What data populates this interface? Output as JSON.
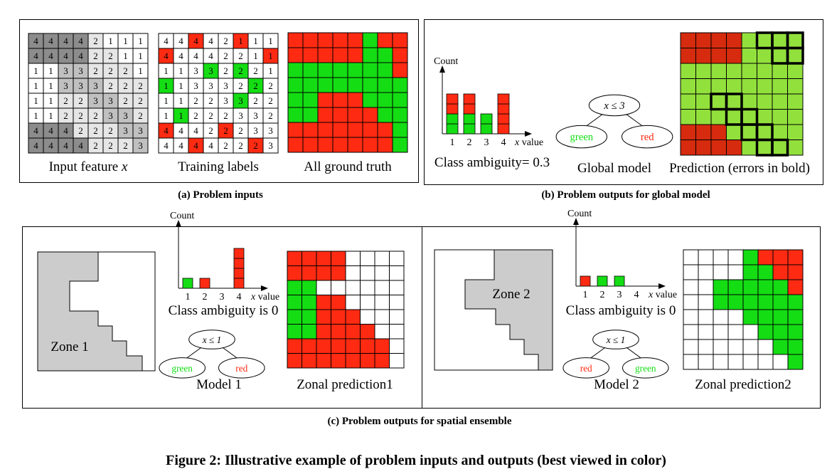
{
  "colors": {
    "red": "#ff2a12",
    "green": "#14dd14",
    "light_green": "#92e03c",
    "dark_red": "#d62b0e",
    "zone_gray": "#cccccc",
    "feature_dark": "#8c8c8c",
    "feature_mid": "#c0c0c0",
    "feature_light": "#e6e6e6"
  },
  "panel_a": {
    "caption": "(a) Problem inputs",
    "input_feature": {
      "label_text": "Input feature ",
      "label_var": "x",
      "grid": [
        [
          4,
          4,
          4,
          4,
          2,
          1,
          1,
          1
        ],
        [
          4,
          4,
          4,
          4,
          2,
          2,
          1,
          1
        ],
        [
          1,
          1,
          3,
          3,
          2,
          2,
          2,
          1
        ],
        [
          1,
          1,
          3,
          3,
          3,
          2,
          2,
          2
        ],
        [
          1,
          1,
          2,
          2,
          3,
          3,
          2,
          2
        ],
        [
          1,
          1,
          2,
          2,
          2,
          3,
          3,
          2
        ],
        [
          4,
          4,
          4,
          2,
          2,
          2,
          3,
          3
        ],
        [
          4,
          4,
          4,
          4,
          2,
          2,
          2,
          3
        ]
      ]
    },
    "training_labels": {
      "label": "Training labels",
      "grid": [
        [
          4,
          4,
          4,
          4,
          2,
          1,
          1,
          1
        ],
        [
          4,
          4,
          4,
          4,
          2,
          2,
          1,
          1
        ],
        [
          1,
          1,
          3,
          3,
          2,
          2,
          2,
          1
        ],
        [
          1,
          1,
          3,
          3,
          3,
          2,
          2,
          2
        ],
        [
          1,
          1,
          2,
          2,
          3,
          3,
          2,
          2
        ],
        [
          1,
          1,
          2,
          2,
          2,
          3,
          3,
          2
        ],
        [
          4,
          4,
          4,
          2,
          2,
          2,
          3,
          3
        ],
        [
          4,
          4,
          4,
          4,
          2,
          2,
          2,
          3
        ]
      ],
      "labels": [
        [
          "",
          "",
          "r",
          "",
          "",
          "r",
          "",
          ""
        ],
        [
          "r",
          "",
          "",
          "",
          "",
          "",
          "",
          "r"
        ],
        [
          "",
          "",
          "",
          "g",
          "",
          "g",
          "",
          ""
        ],
        [
          "g",
          "",
          "",
          "",
          "",
          "",
          "g",
          ""
        ],
        [
          "",
          "",
          "",
          "",
          "",
          "g",
          "",
          ""
        ],
        [
          "",
          "g",
          "",
          "",
          "",
          "",
          "",
          ""
        ],
        [
          "r",
          "",
          "",
          "",
          "r",
          "",
          "",
          ""
        ],
        [
          "",
          "",
          "r",
          "",
          "",
          "",
          "r",
          ""
        ]
      ]
    },
    "ground_truth": {
      "label": "All ground truth",
      "grid": [
        "RRRRRGRR",
        "RRRRRGGR",
        "GGGGGGGR",
        "GGGGGGGG",
        "GGRRRGGG",
        "GGRRRRGG",
        "RRRRRRRG",
        "RRRRRRRG"
      ]
    }
  },
  "panel_b": {
    "caption": "(b) Problem outputs for global model",
    "histogram": {
      "ylabel": "Count",
      "xlabel": "x value",
      "ticks": [
        "1",
        "2",
        "3",
        "4"
      ],
      "bins": [
        {
          "red": 2,
          "green": 2
        },
        {
          "red": 2,
          "green": 2
        },
        {
          "red": 0,
          "green": 2
        },
        {
          "red": 4,
          "green": 0
        }
      ]
    },
    "ambiguity": "Class ambiguity= 0.3",
    "model": {
      "rule": "x ≤ 3",
      "left": "green",
      "right": "red",
      "label": "Global model"
    },
    "prediction": {
      "label": "Prediction (errors in bold)",
      "grid": [
        "RRRRGGGG",
        "RRRRGGGG",
        "GGGGGGGG",
        "GGGGGGGG",
        "GGGGGGGG",
        "GGGGGGGG",
        "RRRGGGGG",
        "RRRRGGGG"
      ],
      "errors": [
        "00000111",
        "00000011",
        "00000000",
        "00000000",
        "00110000",
        "00011000",
        "00001100",
        "00000110"
      ]
    }
  },
  "panel_c": {
    "caption": "(c) Problem outputs for spatial ensemble",
    "zone1": {
      "label": "Zone 1",
      "histogram": {
        "ylabel": "Count",
        "xlabel": "x value",
        "ticks": [
          "1",
          "2",
          "3",
          "4"
        ],
        "bins": [
          {
            "red": 0,
            "green": 1
          },
          {
            "red": 1,
            "green": 0
          },
          {
            "red": 0,
            "green": 0
          },
          {
            "red": 4,
            "green": 0
          }
        ]
      },
      "ambiguity": "Class ambiguity is 0",
      "model": {
        "rule": "x ≤ 1",
        "left": "green",
        "right": "red",
        "label": "Model 1"
      },
      "prediction": {
        "label": "Zonal prediction1",
        "grid": [
          "RRRRWWWW",
          "RRRRWWWW",
          "GGWWWWWW",
          "GGRRWWWW",
          "GGRRRWWW",
          "GGRRRRWW",
          "RRRRRRRW",
          "RRRRRRRW"
        ]
      }
    },
    "zone2": {
      "label": "Zone 2",
      "histogram": {
        "ylabel": "Count",
        "xlabel": "x value",
        "ticks": [
          "1",
          "2",
          "3",
          "4"
        ],
        "bins": [
          {
            "red": 1,
            "green": 0
          },
          {
            "red": 0,
            "green": 1
          },
          {
            "red": 0,
            "green": 1
          },
          {
            "red": 0,
            "green": 0
          }
        ]
      },
      "ambiguity": "Class ambiguity is 0",
      "model": {
        "rule": "x ≤ 1",
        "left": "red",
        "right": "green",
        "label": "Model 2"
      },
      "prediction": {
        "label": "Zonal prediction2",
        "grid": [
          "WWWWGRRR",
          "WWWWGGRR",
          "WWGGGGGR",
          "WWGGGGGG",
          "WWWWGGGG",
          "WWWWWGGG",
          "WWWWWWGG",
          "WWWWWWWG"
        ]
      }
    }
  },
  "figure_caption": "Figure 2: Illustrative example of problem inputs and outputs (best viewed in color)"
}
